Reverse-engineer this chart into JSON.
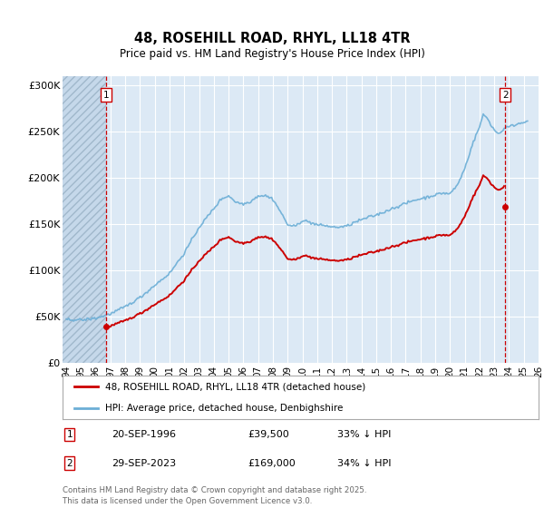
{
  "title": "48, ROSEHILL ROAD, RHYL, LL18 4TR",
  "subtitle": "Price paid vs. HM Land Registry's House Price Index (HPI)",
  "ylim": [
    0,
    310000
  ],
  "xlim": [
    1993.75,
    2026.0
  ],
  "yticks": [
    0,
    50000,
    100000,
    150000,
    200000,
    250000,
    300000
  ],
  "ytick_labels": [
    "£0",
    "£50K",
    "£100K",
    "£150K",
    "£200K",
    "£250K",
    "£300K"
  ],
  "xtick_years": [
    1994,
    1995,
    1996,
    1997,
    1998,
    1999,
    2000,
    2001,
    2002,
    2003,
    2004,
    2005,
    2006,
    2007,
    2008,
    2009,
    2010,
    2011,
    2012,
    2013,
    2014,
    2015,
    2016,
    2017,
    2018,
    2019,
    2020,
    2021,
    2022,
    2023,
    2024,
    2025,
    2026
  ],
  "background_color": "#ffffff",
  "plot_bg_color": "#dce9f5",
  "grid_color": "#ffffff",
  "hpi_color": "#6baed6",
  "price_color": "#cc0000",
  "vline_color": "#cc0000",
  "hatch_color": "#b8cfe0",
  "tx1_x": 1996.72,
  "tx1_y": 39500,
  "tx2_x": 2023.747,
  "tx2_y": 169000,
  "legend1": "48, ROSEHILL ROAD, RHYL, LL18 4TR (detached house)",
  "legend2": "HPI: Average price, detached house, Denbighshire",
  "tx1_label": "1",
  "tx1_date": "20-SEP-1996",
  "tx1_price": "£39,500",
  "tx1_note": "33% ↓ HPI",
  "tx2_label": "2",
  "tx2_date": "29-SEP-2023",
  "tx2_price": "£169,000",
  "tx2_note": "34% ↓ HPI",
  "footnote": "Contains HM Land Registry data © Crown copyright and database right 2025.\nThis data is licensed under the Open Government Licence v3.0."
}
